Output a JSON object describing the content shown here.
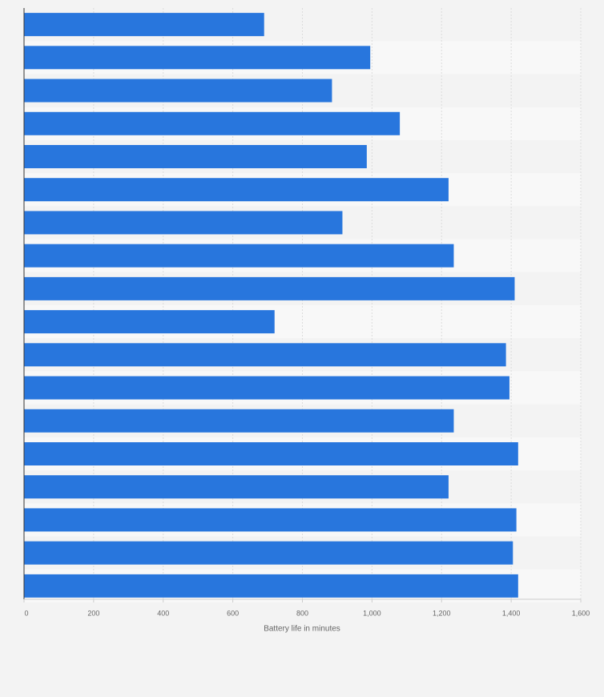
{
  "chart_data": {
    "type": "bar",
    "orientation": "horizontal",
    "xlabel": "Battery life in minutes",
    "categories": [
      null,
      null,
      null,
      null,
      null,
      null,
      null,
      null,
      null,
      null,
      null,
      null,
      null,
      null,
      null,
      null,
      null,
      null
    ],
    "values": [
      690,
      995,
      885,
      1080,
      985,
      1220,
      915,
      1235,
      1410,
      720,
      1385,
      1395,
      1235,
      1420,
      1220,
      1415,
      1405,
      1420
    ],
    "color": "#2876dd",
    "xlim": [
      0,
      1600
    ],
    "xticks": [
      0,
      200,
      400,
      600,
      800,
      {
        "value": 1000,
        "label": "1,000"
      },
      {
        "value": 1200,
        "label": "1,200"
      },
      {
        "value": 1400,
        "label": "1,400"
      },
      {
        "value": 1600,
        "label": "1,600"
      }
    ],
    "grid": true
  }
}
